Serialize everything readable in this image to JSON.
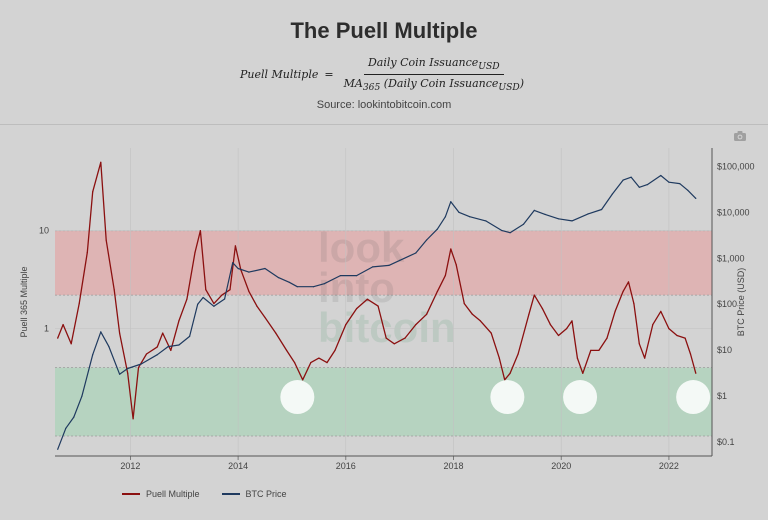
{
  "header": {
    "title": "The Puell Multiple",
    "formula_lhs": "Puell Multiple",
    "formula_eq": "=",
    "formula_numerator": "Daily Coin Issuance",
    "formula_numerator_sub": "USD",
    "formula_denominator_prefix": "MA",
    "formula_denominator_prefix_sub": "365",
    "formula_denominator": " (Daily Coin Issuance",
    "formula_denominator_sub": "USD",
    "formula_denominator_close": ")",
    "source": "Source: lookintobitcoin.com"
  },
  "toolbar": {
    "camera_icon": "camera-icon"
  },
  "watermark": [
    "look",
    "into",
    "bitcoin"
  ],
  "colors": {
    "puell": "#8b1010",
    "btc": "#1f3a5f",
    "top_band": "#e89a9a",
    "bottom_band": "#9ed4b0",
    "grid": "#c2c2c2"
  },
  "chart_data": {
    "type": "line",
    "title": "The Puell Multiple",
    "x_range": [
      2010.6,
      2022.8
    ],
    "x_ticks": [
      "2012",
      "2014",
      "2016",
      "2018",
      "2020",
      "2022"
    ],
    "y_left": {
      "label": "Puell 365 Multiple",
      "scale": "log",
      "range": [
        0.05,
        70
      ],
      "tick_labels": [
        "1",
        "10"
      ]
    },
    "y_right": {
      "label": "BTC Price (USD)",
      "scale": "log",
      "range": [
        0.05,
        250000
      ],
      "tick_labels": [
        "$0.1",
        "$1",
        "$10",
        "$100",
        "$1,000",
        "$10,000",
        "$100,000"
      ]
    },
    "bands": [
      {
        "name": "top",
        "from": 2.2,
        "to": 10,
        "axis": "left"
      },
      {
        "name": "bottom",
        "from": 0.08,
        "to": 0.4,
        "axis": "left"
      }
    ],
    "series": [
      {
        "name": "Puell Multiple",
        "axis": "left",
        "points": [
          [
            2010.65,
            0.8
          ],
          [
            2010.75,
            1.1
          ],
          [
            2010.9,
            0.7
          ],
          [
            2011.05,
            1.8
          ],
          [
            2011.2,
            6
          ],
          [
            2011.3,
            25
          ],
          [
            2011.45,
            50
          ],
          [
            2011.55,
            8
          ],
          [
            2011.7,
            2.5
          ],
          [
            2011.8,
            0.9
          ],
          [
            2011.95,
            0.35
          ],
          [
            2012.05,
            0.12
          ],
          [
            2012.15,
            0.4
          ],
          [
            2012.3,
            0.55
          ],
          [
            2012.5,
            0.65
          ],
          [
            2012.6,
            0.9
          ],
          [
            2012.75,
            0.6
          ],
          [
            2012.9,
            1.2
          ],
          [
            2013.05,
            2
          ],
          [
            2013.2,
            6
          ],
          [
            2013.3,
            10
          ],
          [
            2013.4,
            2.5
          ],
          [
            2013.55,
            1.8
          ],
          [
            2013.7,
            2.2
          ],
          [
            2013.85,
            2.5
          ],
          [
            2013.95,
            7
          ],
          [
            2014.05,
            4
          ],
          [
            2014.2,
            2.4
          ],
          [
            2014.35,
            1.7
          ],
          [
            2014.5,
            1.3
          ],
          [
            2014.7,
            0.9
          ],
          [
            2014.9,
            0.6
          ],
          [
            2015.05,
            0.45
          ],
          [
            2015.2,
            0.3
          ],
          [
            2015.35,
            0.45
          ],
          [
            2015.5,
            0.5
          ],
          [
            2015.65,
            0.45
          ],
          [
            2015.8,
            0.6
          ],
          [
            2016.0,
            1.1
          ],
          [
            2016.2,
            1.6
          ],
          [
            2016.4,
            2.0
          ],
          [
            2016.6,
            1.7
          ],
          [
            2016.75,
            0.8
          ],
          [
            2016.9,
            0.7
          ],
          [
            2017.1,
            0.8
          ],
          [
            2017.3,
            1.1
          ],
          [
            2017.5,
            1.4
          ],
          [
            2017.7,
            2.4
          ],
          [
            2017.85,
            3.5
          ],
          [
            2017.95,
            6.5
          ],
          [
            2018.05,
            4.5
          ],
          [
            2018.2,
            1.8
          ],
          [
            2018.35,
            1.4
          ],
          [
            2018.5,
            1.2
          ],
          [
            2018.7,
            0.9
          ],
          [
            2018.85,
            0.5
          ],
          [
            2018.95,
            0.3
          ],
          [
            2019.05,
            0.35
          ],
          [
            2019.2,
            0.55
          ],
          [
            2019.4,
            1.4
          ],
          [
            2019.5,
            2.2
          ],
          [
            2019.65,
            1.6
          ],
          [
            2019.8,
            1.1
          ],
          [
            2019.95,
            0.85
          ],
          [
            2020.1,
            1.0
          ],
          [
            2020.2,
            1.2
          ],
          [
            2020.3,
            0.5
          ],
          [
            2020.4,
            0.35
          ],
          [
            2020.55,
            0.6
          ],
          [
            2020.7,
            0.6
          ],
          [
            2020.85,
            0.8
          ],
          [
            2021.0,
            1.5
          ],
          [
            2021.15,
            2.4
          ],
          [
            2021.25,
            3.0
          ],
          [
            2021.35,
            1.8
          ],
          [
            2021.45,
            0.7
          ],
          [
            2021.55,
            0.5
          ],
          [
            2021.7,
            1.1
          ],
          [
            2021.85,
            1.5
          ],
          [
            2022.0,
            1.0
          ],
          [
            2022.15,
            0.85
          ],
          [
            2022.3,
            0.8
          ],
          [
            2022.4,
            0.55
          ],
          [
            2022.5,
            0.35
          ]
        ]
      },
      {
        "name": "BTC Price",
        "axis": "right",
        "points": [
          [
            2010.65,
            0.07
          ],
          [
            2010.8,
            0.2
          ],
          [
            2010.95,
            0.35
          ],
          [
            2011.1,
            1
          ],
          [
            2011.3,
            8
          ],
          [
            2011.45,
            25
          ],
          [
            2011.6,
            12
          ],
          [
            2011.8,
            3
          ],
          [
            2011.95,
            4
          ],
          [
            2012.2,
            5
          ],
          [
            2012.5,
            8
          ],
          [
            2012.7,
            12
          ],
          [
            2012.9,
            13
          ],
          [
            2013.1,
            20
          ],
          [
            2013.25,
            100
          ],
          [
            2013.35,
            140
          ],
          [
            2013.55,
            90
          ],
          [
            2013.75,
            130
          ],
          [
            2013.9,
            800
          ],
          [
            2014.0,
            600
          ],
          [
            2014.2,
            500
          ],
          [
            2014.5,
            600
          ],
          [
            2014.75,
            380
          ],
          [
            2014.95,
            300
          ],
          [
            2015.1,
            240
          ],
          [
            2015.4,
            240
          ],
          [
            2015.6,
            280
          ],
          [
            2015.9,
            420
          ],
          [
            2016.2,
            420
          ],
          [
            2016.5,
            650
          ],
          [
            2016.8,
            700
          ],
          [
            2017.0,
            900
          ],
          [
            2017.3,
            1300
          ],
          [
            2017.5,
            2500
          ],
          [
            2017.7,
            4300
          ],
          [
            2017.85,
            8000
          ],
          [
            2017.95,
            17000
          ],
          [
            2018.1,
            10000
          ],
          [
            2018.3,
            8000
          ],
          [
            2018.6,
            6500
          ],
          [
            2018.9,
            4000
          ],
          [
            2019.05,
            3600
          ],
          [
            2019.3,
            5500
          ],
          [
            2019.5,
            11000
          ],
          [
            2019.7,
            9000
          ],
          [
            2019.95,
            7200
          ],
          [
            2020.2,
            6500
          ],
          [
            2020.5,
            9200
          ],
          [
            2020.75,
            11500
          ],
          [
            2020.95,
            25000
          ],
          [
            2021.15,
            50000
          ],
          [
            2021.3,
            58000
          ],
          [
            2021.45,
            35000
          ],
          [
            2021.6,
            40000
          ],
          [
            2021.85,
            63000
          ],
          [
            2022.0,
            45000
          ],
          [
            2022.2,
            42000
          ],
          [
            2022.35,
            30000
          ],
          [
            2022.5,
            20000
          ]
        ]
      }
    ],
    "highlight_circles": [
      2015.1,
      2019.0,
      2020.35,
      2022.45
    ],
    "legend": {
      "placement": "bottom-left",
      "entries": [
        "Puell Multiple",
        "BTC Price"
      ]
    }
  }
}
